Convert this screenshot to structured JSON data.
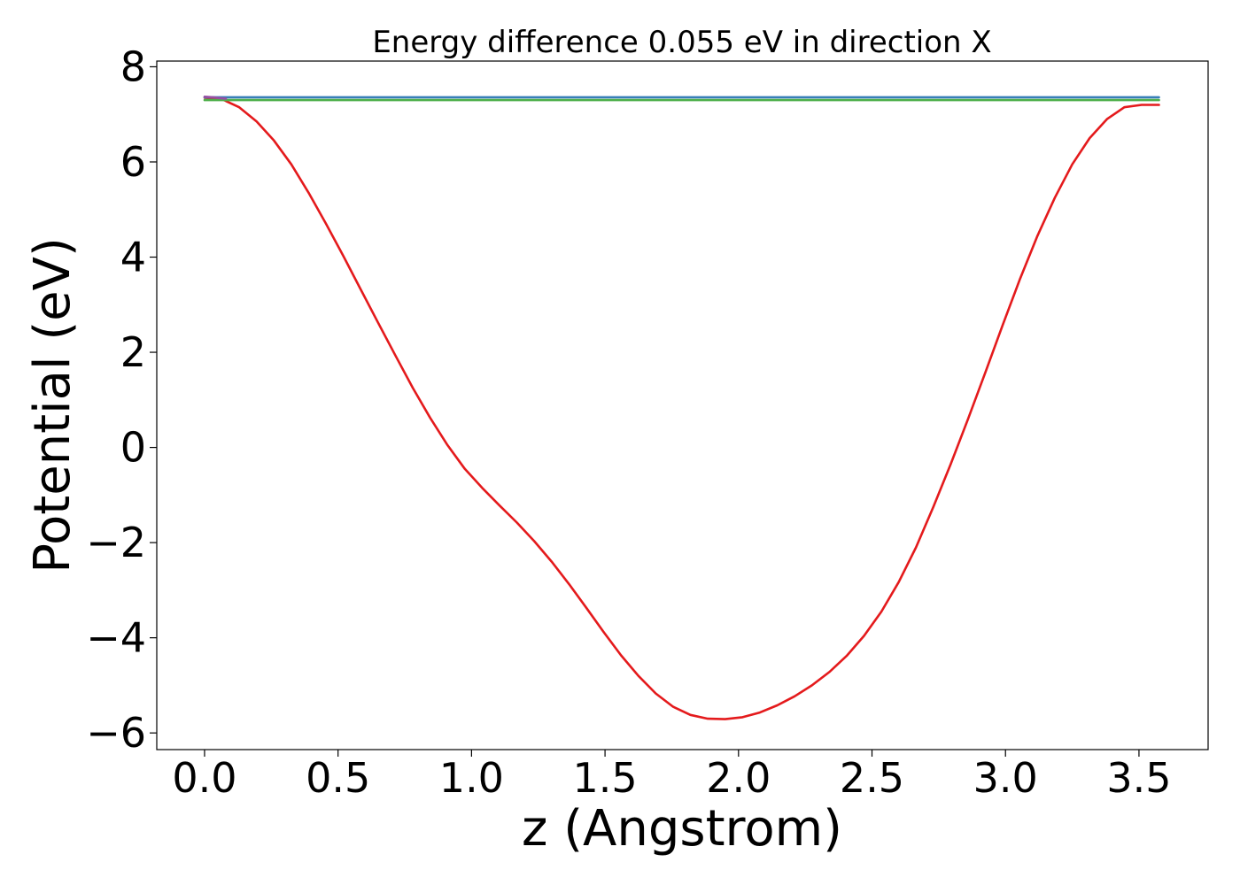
{
  "chart_data": {
    "type": "line",
    "title": "Energy difference 0.055 eV in direction X",
    "xlabel": "z (Angstrom)",
    "ylabel": "Potential (eV)",
    "xlim": [
      -0.179,
      3.759
    ],
    "ylim": [
      -6.35,
      8.12
    ],
    "xticks": [
      0.0,
      0.5,
      1.0,
      1.5,
      2.0,
      2.5,
      3.0,
      3.5
    ],
    "xtick_labels": [
      "0.0",
      "0.5",
      "1.0",
      "1.5",
      "2.0",
      "2.5",
      "3.0",
      "3.5"
    ],
    "yticks": [
      -6,
      -4,
      -2,
      0,
      2,
      4,
      6,
      8
    ],
    "ytick_labels": [
      "−6",
      "−4",
      "−2",
      "0",
      "2",
      "4",
      "6",
      "8"
    ],
    "grid": false,
    "legend": "none",
    "series": [
      {
        "color": "#e41a1c",
        "x": [
          0.0,
          0.065,
          0.13,
          0.195,
          0.26,
          0.325,
          0.39,
          0.455,
          0.52,
          0.585,
          0.65,
          0.715,
          0.78,
          0.845,
          0.91,
          0.975,
          1.04,
          1.105,
          1.17,
          1.235,
          1.3,
          1.365,
          1.43,
          1.495,
          1.56,
          1.625,
          1.69,
          1.755,
          1.82,
          1.885,
          1.95,
          2.015,
          2.08,
          2.145,
          2.21,
          2.275,
          2.34,
          2.405,
          2.47,
          2.535,
          2.6,
          2.665,
          2.73,
          2.795,
          2.86,
          2.925,
          2.99,
          3.055,
          3.12,
          3.185,
          3.25,
          3.315,
          3.38,
          3.445,
          3.51,
          3.575
        ],
        "y": [
          7.35,
          7.32,
          7.15,
          6.85,
          6.45,
          5.95,
          5.35,
          4.7,
          4.02,
          3.32,
          2.62,
          1.93,
          1.25,
          0.62,
          0.05,
          -0.45,
          -0.85,
          -1.22,
          -1.58,
          -1.97,
          -2.4,
          -2.87,
          -3.37,
          -3.88,
          -4.37,
          -4.8,
          -5.17,
          -5.45,
          -5.62,
          -5.7,
          -5.71,
          -5.67,
          -5.57,
          -5.42,
          -5.23,
          -5.0,
          -4.72,
          -4.38,
          -3.96,
          -3.45,
          -2.83,
          -2.1,
          -1.25,
          -0.35,
          0.6,
          1.58,
          2.58,
          3.55,
          4.45,
          5.25,
          5.95,
          6.5,
          6.9,
          7.15,
          7.2,
          7.2
        ]
      },
      {
        "color": "#377eb8",
        "x": [
          0.0,
          3.575
        ],
        "y": [
          7.36,
          7.36
        ]
      },
      {
        "color": "#4daf4a",
        "x": [
          0.0,
          3.575
        ],
        "y": [
          7.3,
          7.3
        ]
      },
      {
        "color": "#984ea3",
        "x": [
          0.0,
          0.03,
          0.06,
          0.08
        ],
        "y": [
          7.37,
          7.36,
          7.34,
          7.33
        ]
      }
    ]
  }
}
